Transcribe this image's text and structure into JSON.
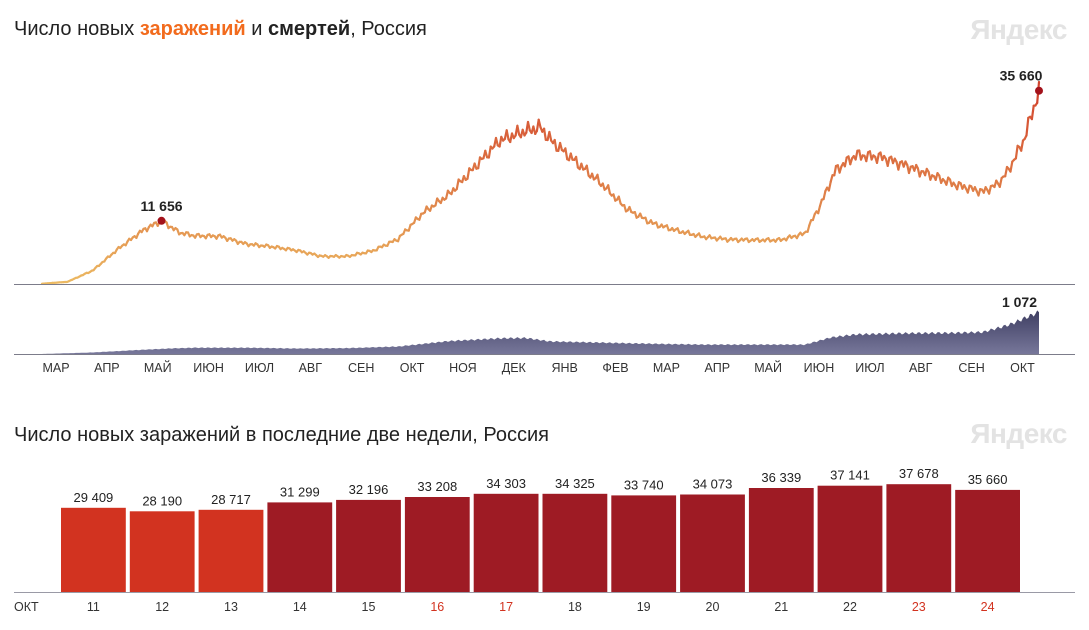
{
  "title_top": {
    "prefix": "Число новых ",
    "infections": "заражений",
    "middle": " и ",
    "deaths": "смертей",
    "suffix": ", Россия"
  },
  "title_bottom": "Число новых заражений в последние две недели, Россия",
  "logo_text": "Яндекс",
  "colors": {
    "infections_accent": "#f26b1d",
    "deaths_area": "#4a4a6e",
    "bar_weekday": "#9e1b24",
    "bar_weekend": "#d23320",
    "weekend_label": "#d23320",
    "curve_low": "#ecbb63",
    "curve_high": "#d2432d",
    "marker": "#a3121b"
  },
  "chart_data": [
    {
      "type": "line",
      "name": "new_infections_and_deaths",
      "x_axis_labels": [
        "МАР",
        "АПР",
        "МАЙ",
        "ИЮН",
        "ИЮЛ",
        "АВГ",
        "СЕН",
        "ОКТ",
        "НОЯ",
        "ДЕК",
        "ЯНВ",
        "ФЕВ",
        "МАР",
        "АПР",
        "МАЙ",
        "ИЮН",
        "ИЮЛ",
        "АВГ",
        "СЕН",
        "ОКТ"
      ],
      "infections": {
        "series_type": "line",
        "ylim": [
          0,
          38000
        ],
        "annotations": [
          {
            "label": "11 656",
            "at_month_index": 2.35,
            "value": 11656
          },
          {
            "label": "35 660",
            "at_month_index": 19.6,
            "value": 35660
          }
        ],
        "monthly_values": [
          [
            0,
            50
          ],
          [
            0.5,
            400
          ],
          [
            1.0,
            2500
          ],
          [
            1.5,
            6500
          ],
          [
            2.0,
            10000
          ],
          [
            2.35,
            11656
          ],
          [
            2.7,
            9500
          ],
          [
            3.0,
            8900
          ],
          [
            3.5,
            8800
          ],
          [
            4.0,
            7400
          ],
          [
            4.5,
            6900
          ],
          [
            5.0,
            6200
          ],
          [
            5.5,
            5100
          ],
          [
            6.0,
            5100
          ],
          [
            6.5,
            6100
          ],
          [
            7.0,
            8300
          ],
          [
            7.5,
            13200
          ],
          [
            8.0,
            16500
          ],
          [
            8.5,
            21500
          ],
          [
            9.0,
            26500
          ],
          [
            9.5,
            28200
          ],
          [
            9.8,
            28900
          ],
          [
            10.0,
            26500
          ],
          [
            10.5,
            22500
          ],
          [
            11.0,
            18500
          ],
          [
            11.5,
            13800
          ],
          [
            12.0,
            11200
          ],
          [
            12.5,
            9800
          ],
          [
            13.0,
            8700
          ],
          [
            13.5,
            8200
          ],
          [
            14.0,
            8100
          ],
          [
            14.5,
            8100
          ],
          [
            15.0,
            9300
          ],
          [
            15.3,
            14500
          ],
          [
            15.6,
            21000
          ],
          [
            16.0,
            23800
          ],
          [
            16.5,
            23400
          ],
          [
            17.0,
            21800
          ],
          [
            17.5,
            20000
          ],
          [
            18.0,
            18200
          ],
          [
            18.5,
            17000
          ],
          [
            18.8,
            18500
          ],
          [
            19.0,
            21000
          ],
          [
            19.3,
            26500
          ],
          [
            19.6,
            35660
          ]
        ]
      },
      "deaths": {
        "series_type": "area",
        "ylim": [
          0,
          1100
        ],
        "annotations": [
          {
            "label": "1 072",
            "at_month_index": 19.6,
            "value": 1072
          }
        ],
        "monthly_values": [
          [
            0,
            0
          ],
          [
            1.0,
            40
          ],
          [
            2.0,
            110
          ],
          [
            2.5,
            140
          ],
          [
            3.0,
            160
          ],
          [
            4.0,
            160
          ],
          [
            5.0,
            140
          ],
          [
            6.0,
            150
          ],
          [
            7.0,
            190
          ],
          [
            8.0,
            330
          ],
          [
            9.0,
            400
          ],
          [
            9.5,
            410
          ],
          [
            10.0,
            320
          ],
          [
            11.0,
            290
          ],
          [
            12.0,
            260
          ],
          [
            13.0,
            240
          ],
          [
            14.0,
            240
          ],
          [
            15.0,
            240
          ],
          [
            15.5,
            420
          ],
          [
            16.0,
            500
          ],
          [
            17.0,
            530
          ],
          [
            18.0,
            540
          ],
          [
            18.5,
            560
          ],
          [
            19.0,
            740
          ],
          [
            19.6,
            1072
          ]
        ]
      }
    },
    {
      "type": "bar",
      "name": "last_two_weeks",
      "x_prefix": "ОКТ",
      "categories": [
        "11",
        "12",
        "13",
        "14",
        "15",
        "16",
        "17",
        "18",
        "19",
        "20",
        "21",
        "22",
        "23",
        "24"
      ],
      "value_labels": [
        "29 409",
        "28 190",
        "28 717",
        "31 299",
        "32 196",
        "33 208",
        "34 303",
        "34 325",
        "33 740",
        "34 073",
        "36 339",
        "37 141",
        "37 678",
        "35 660"
      ],
      "values": [
        29409,
        28190,
        28717,
        31299,
        32196,
        33208,
        34303,
        34325,
        33740,
        34073,
        36339,
        37141,
        37678,
        35660
      ],
      "ylim": [
        0,
        40000
      ],
      "bar_color_group": [
        "weekend",
        "weekend",
        "weekend",
        "weekday",
        "weekday",
        "weekday",
        "weekday",
        "weekday",
        "weekday",
        "weekday",
        "weekday",
        "weekday",
        "weekday",
        "weekday"
      ],
      "label_color_group": [
        "normal",
        "normal",
        "normal",
        "normal",
        "normal",
        "weekend",
        "weekend",
        "normal",
        "normal",
        "normal",
        "normal",
        "normal",
        "weekend",
        "weekend"
      ]
    }
  ]
}
